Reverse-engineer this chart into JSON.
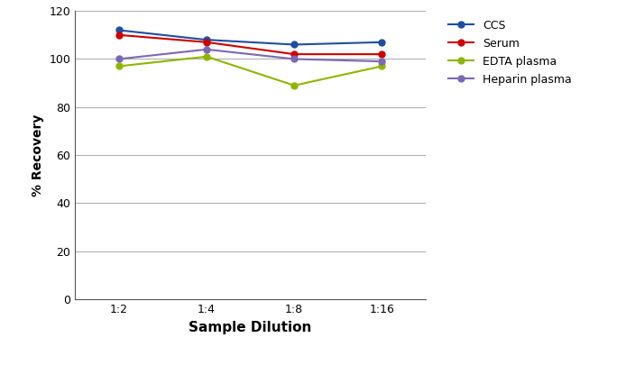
{
  "x_labels": [
    "1:2",
    "1:4",
    "1:8",
    "1:16"
  ],
  "x_positions": [
    0,
    1,
    2,
    3
  ],
  "series": [
    {
      "name": "CCS",
      "color": "#1f4e9e",
      "values": [
        112,
        108,
        106,
        107
      ]
    },
    {
      "name": "Serum",
      "color": "#cc0000",
      "values": [
        110,
        107,
        102,
        102
      ]
    },
    {
      "name": "EDTA plasma",
      "color": "#8db600",
      "values": [
        97,
        101,
        89,
        97
      ]
    },
    {
      "name": "Heparin plasma",
      "color": "#7b68b5",
      "values": [
        100,
        104,
        100,
        99
      ]
    }
  ],
  "xlabel": "Sample Dilution",
  "ylabel": "% Recovery",
  "ylim": [
    0,
    120
  ],
  "yticks": [
    0,
    20,
    40,
    60,
    80,
    100,
    120
  ],
  "background_color": "#ffffff",
  "grid_color": "#b0b0b0",
  "marker": "o",
  "marker_size": 5,
  "linewidth": 1.5,
  "xlabel_fontsize": 11,
  "ylabel_fontsize": 10,
  "tick_fontsize": 9,
  "legend_fontsize": 9,
  "spine_color": "#555555",
  "figwidth": 6.94,
  "figheight": 4.05,
  "dpi": 100
}
